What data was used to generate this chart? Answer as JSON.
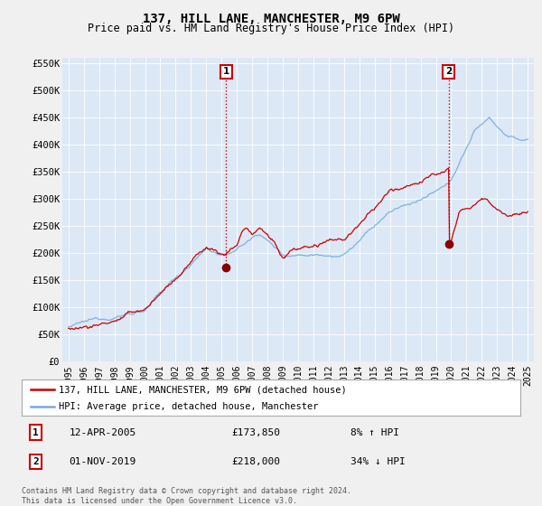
{
  "title": "137, HILL LANE, MANCHESTER, M9 6PW",
  "subtitle": "Price paid vs. HM Land Registry's House Price Index (HPI)",
  "legend_label_red": "137, HILL LANE, MANCHESTER, M9 6PW (detached house)",
  "legend_label_blue": "HPI: Average price, detached house, Manchester",
  "annotation1_label": "1",
  "annotation1_date": "12-APR-2005",
  "annotation1_price": "£173,850",
  "annotation1_pct": "8% ↑ HPI",
  "annotation1_year": 2005.3,
  "annotation1_value": 173850,
  "annotation2_label": "2",
  "annotation2_date": "01-NOV-2019",
  "annotation2_price": "£218,000",
  "annotation2_pct": "34% ↓ HPI",
  "annotation2_year": 2019.83,
  "annotation2_value": 218000,
  "footer": "Contains HM Land Registry data © Crown copyright and database right 2024.\nThis data is licensed under the Open Government Licence v3.0.",
  "ylim": [
    0,
    560000
  ],
  "yticks": [
    0,
    50000,
    100000,
    150000,
    200000,
    250000,
    300000,
    350000,
    400000,
    450000,
    500000,
    550000
  ],
  "ytick_labels": [
    "£0",
    "£50K",
    "£100K",
    "£150K",
    "£200K",
    "£250K",
    "£300K",
    "£350K",
    "£400K",
    "£450K",
    "£500K",
    "£550K"
  ],
  "xlim_start": 1994.6,
  "xlim_end": 2025.4,
  "background_color": "#e8eef5",
  "plot_bg_color": "#dce8f5",
  "red_color": "#cc0000",
  "blue_color": "#7aabda",
  "grid_color": "#ffffff",
  "ann_marker_color": "#880000"
}
